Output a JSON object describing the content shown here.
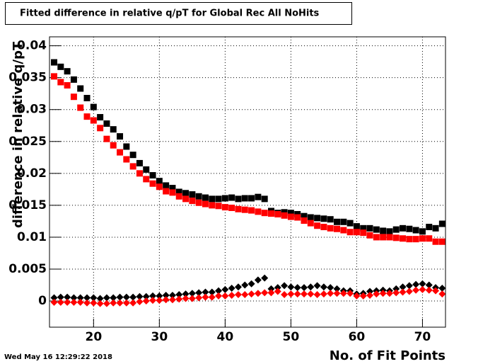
{
  "chart_data": {
    "type": "scatter",
    "title": "Fitted difference in relative q/pT  for Global Rec All NoHits",
    "xlabel": "No. of Fit Points",
    "ylabel": "difference in relative q/pT",
    "timestamp": "Wed May 16 12:29:22 2018",
    "grid": true,
    "xlim": [
      13.3,
      73.5
    ],
    "ylim": [
      -0.0041,
      0.0414
    ],
    "xticks": [
      20,
      30,
      40,
      50,
      60,
      70
    ],
    "yticks": [
      0,
      0.005,
      0.01,
      0.015,
      0.02,
      0.025,
      0.03,
      0.035,
      0.04
    ],
    "x": [
      14,
      15,
      16,
      17,
      18,
      19,
      20,
      21,
      22,
      23,
      24,
      25,
      26,
      27,
      28,
      29,
      30,
      31,
      32,
      33,
      34,
      35,
      36,
      37,
      38,
      39,
      40,
      41,
      42,
      43,
      44,
      45,
      46,
      47,
      48,
      49,
      50,
      51,
      52,
      53,
      54,
      55,
      56,
      57,
      58,
      59,
      60,
      61,
      62,
      63,
      64,
      65,
      66,
      67,
      68,
      69,
      70,
      71,
      72,
      73
    ],
    "series": [
      {
        "color": "#000000",
        "marker": "square",
        "values": [
          0.0374,
          0.0367,
          0.036,
          0.0347,
          0.0333,
          0.0318,
          0.0304,
          0.0288,
          0.0278,
          0.0269,
          0.0258,
          0.0242,
          0.0229,
          0.0216,
          0.0206,
          0.0197,
          0.0188,
          0.0181,
          0.0177,
          0.0171,
          0.0169,
          0.0167,
          0.0164,
          0.0162,
          0.016,
          0.016,
          0.0161,
          0.0162,
          0.016,
          0.0161,
          0.0161,
          0.0163,
          0.016,
          0.0141,
          0.0138,
          0.0139,
          0.0138,
          0.0136,
          0.0133,
          0.0131,
          0.013,
          0.0129,
          0.0128,
          0.0124,
          0.0124,
          0.0122,
          0.0117,
          0.0114,
          0.0114,
          0.0112,
          0.011,
          0.0109,
          0.0112,
          0.0114,
          0.0113,
          0.0111,
          0.0109,
          0.0116,
          0.0114,
          0.0121
        ]
      },
      {
        "color": "#ff0000",
        "marker": "square",
        "values": [
          0.0352,
          0.0343,
          0.0338,
          0.032,
          0.0303,
          0.0289,
          0.0283,
          0.0271,
          0.0254,
          0.0244,
          0.0233,
          0.0222,
          0.0211,
          0.02,
          0.0191,
          0.0184,
          0.0179,
          0.0172,
          0.017,
          0.0164,
          0.016,
          0.0157,
          0.0154,
          0.0152,
          0.015,
          0.0149,
          0.0147,
          0.0146,
          0.0144,
          0.0143,
          0.0142,
          0.014,
          0.0138,
          0.0137,
          0.0136,
          0.0134,
          0.0132,
          0.0131,
          0.0126,
          0.0122,
          0.0118,
          0.0116,
          0.0114,
          0.0113,
          0.0111,
          0.0108,
          0.0108,
          0.0107,
          0.0103,
          0.01,
          0.01,
          0.01,
          0.0099,
          0.0098,
          0.0097,
          0.0097,
          0.0098,
          0.0098,
          0.0093,
          0.0093
        ]
      },
      {
        "color": "#000000",
        "marker": "diamond",
        "values": [
          0.0005,
          0.0006,
          0.0006,
          0.0005,
          0.0005,
          0.0005,
          0.0005,
          0.0004,
          0.0005,
          0.0005,
          0.0006,
          0.0006,
          0.0006,
          0.0007,
          0.0007,
          0.0008,
          0.0008,
          0.0009,
          0.0009,
          0.001,
          0.0011,
          0.0012,
          0.0013,
          0.0014,
          0.0014,
          0.0016,
          0.0018,
          0.002,
          0.0022,
          0.0025,
          0.0027,
          0.0033,
          0.0036,
          0.0019,
          0.0021,
          0.0024,
          0.0022,
          0.0021,
          0.0021,
          0.0022,
          0.0024,
          0.0022,
          0.0021,
          0.0019,
          0.0016,
          0.0016,
          0.0011,
          0.0012,
          0.0015,
          0.0016,
          0.0017,
          0.0016,
          0.0019,
          0.0022,
          0.0024,
          0.0026,
          0.0027,
          0.0025,
          0.0021,
          0.002
        ]
      },
      {
        "color": "#ff0000",
        "marker": "diamond",
        "values": [
          -0.0002,
          -0.0002,
          -0.0002,
          -0.0002,
          -0.0002,
          -0.0003,
          -0.0003,
          -0.0004,
          -0.0004,
          -0.0003,
          -0.0003,
          -0.0003,
          -0.0003,
          -0.0001,
          0,
          0.0001,
          0.0001,
          0.0002,
          0.0002,
          0.0003,
          0.0004,
          0.0004,
          0.0005,
          0.0006,
          0.0006,
          0.0008,
          0.0008,
          0.0009,
          0.001,
          0.001,
          0.0011,
          0.0012,
          0.0013,
          0.0013,
          0.0015,
          0.001,
          0.0011,
          0.0011,
          0.0011,
          0.0011,
          0.001,
          0.0011,
          0.0012,
          0.0012,
          0.0012,
          0.0012,
          0.0008,
          0.0008,
          0.0009,
          0.0011,
          0.0012,
          0.0012,
          0.0013,
          0.0014,
          0.0015,
          0.0017,
          0.0018,
          0.0017,
          0.0016,
          0.0011
        ]
      }
    ]
  }
}
